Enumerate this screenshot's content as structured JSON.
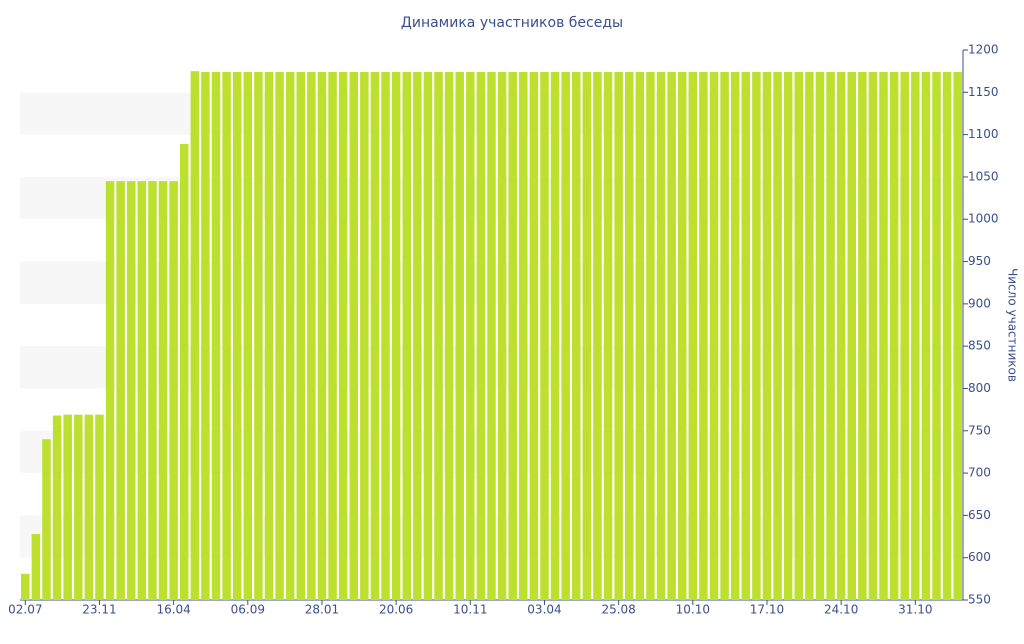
{
  "chart_data": {
    "type": "bar",
    "title": "Динамика участников беседы",
    "y_axis_label": "Число участников",
    "categories": [
      "02.07",
      null,
      null,
      null,
      null,
      null,
      null,
      "23.11",
      null,
      null,
      null,
      null,
      null,
      null,
      "16.04",
      null,
      null,
      null,
      null,
      null,
      null,
      "06.09",
      null,
      null,
      null,
      null,
      null,
      null,
      "28.01",
      null,
      null,
      null,
      null,
      null,
      null,
      "20.06",
      null,
      null,
      null,
      null,
      null,
      null,
      "10.11",
      null,
      null,
      null,
      null,
      null,
      null,
      "03.04",
      null,
      null,
      null,
      null,
      null,
      null,
      "25.08",
      null,
      null,
      null,
      null,
      null,
      null,
      "10.10",
      null,
      null,
      null,
      null,
      null,
      null,
      "17.10",
      null,
      null,
      null,
      null,
      null,
      null,
      "24.10",
      null,
      null,
      null,
      null,
      null,
      null,
      "31.10",
      null,
      null,
      null,
      null
    ],
    "values": [
      581,
      628,
      740,
      768,
      769,
      769,
      769,
      769,
      1045,
      1045,
      1045,
      1045,
      1045,
      1045,
      1045,
      1089,
      1175,
      1174,
      1174,
      1174,
      1174,
      1174,
      1174,
      1174,
      1174,
      1174,
      1174,
      1174,
      1174,
      1174,
      1174,
      1174,
      1174,
      1174,
      1174,
      1174,
      1174,
      1174,
      1174,
      1174,
      1174,
      1174,
      1174,
      1174,
      1174,
      1174,
      1174,
      1174,
      1174,
      1174,
      1174,
      1174,
      1174,
      1174,
      1174,
      1174,
      1174,
      1174,
      1174,
      1174,
      1174,
      1174,
      1174,
      1174,
      1174,
      1174,
      1174,
      1174,
      1174,
      1174,
      1174,
      1174,
      1174,
      1174,
      1174,
      1174,
      1174,
      1174,
      1174,
      1174,
      1174,
      1174,
      1174,
      1174,
      1174,
      1174,
      1174,
      1174,
      1174
    ],
    "color": "#bddf2e",
    "ylim": [
      550,
      1200
    ],
    "yticks": [
      550,
      600,
      650,
      700,
      750,
      800,
      850,
      900,
      950,
      1000,
      1050,
      1100,
      1150,
      1200
    ],
    "grid": "bands",
    "y_axis_side": "right"
  }
}
